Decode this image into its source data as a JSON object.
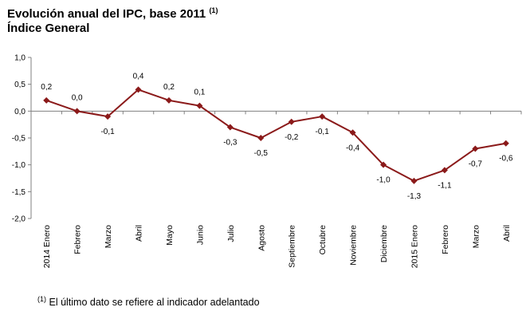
{
  "header": {
    "title_line1": "Evolución anual del IPC, base 2011",
    "title_note": "(1)",
    "title_line2": "Índice General"
  },
  "footnote": {
    "mark": "(1)",
    "text": "El último dato se refiere al indicador adelantado"
  },
  "colors": {
    "series": "#8B1A1A",
    "axis": "#808080",
    "text": "#000000"
  },
  "chart_data": {
    "type": "line",
    "title": "Evolución anual del IPC, base 2011 (1) Índice General",
    "categories": [
      "2014 Enero",
      "Febrero",
      "Marzo",
      "Abril",
      "Mayo",
      "Junio",
      "Julio",
      "Agosto",
      "Septiembre",
      "Octubre",
      "Noviembre",
      "Diciembre",
      "2015 Enero",
      "Febrero",
      "Marzo",
      "Abril"
    ],
    "values": [
      0.2,
      0.0,
      -0.1,
      0.4,
      0.2,
      0.1,
      -0.3,
      -0.5,
      -0.2,
      -0.1,
      -0.4,
      -1.0,
      -1.3,
      -1.1,
      -0.7,
      -0.6
    ],
    "data_labels": [
      "0,2",
      "0,0",
      "-0,1",
      "0,4",
      "0,2",
      "0,1",
      "-0,3",
      "-0,5",
      "-0,2",
      "-0,1",
      "-0,4",
      "-1,0",
      "-1,3",
      "-1,1",
      "-0,7",
      "-0,6"
    ],
    "label_position": [
      "above",
      "above",
      "below",
      "above",
      "above",
      "above",
      "below",
      "below",
      "below",
      "below",
      "below",
      "below",
      "below",
      "below",
      "below",
      "below"
    ],
    "y_ticks": [
      1.0,
      0.5,
      0.0,
      -0.5,
      -1.0,
      -1.5,
      -2.0
    ],
    "y_tick_labels": [
      "1,0",
      "0,5",
      "0,0",
      "-0,5",
      "-1,0",
      "-1,5",
      "-2,0"
    ],
    "ylim": [
      -2.0,
      1.0
    ],
    "grid": false,
    "marker": "diamond",
    "legend": "none"
  }
}
